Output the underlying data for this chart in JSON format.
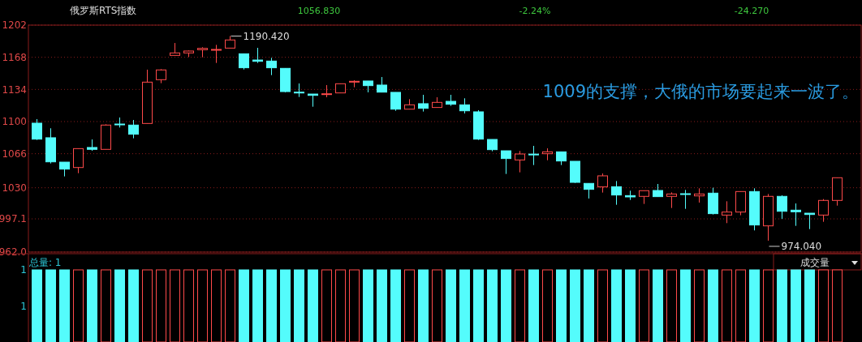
{
  "chart_data": [
    {
      "type": "candlestick",
      "title": "俄罗斯RTS指数",
      "annotations": [
        "1056.830",
        "-2.24%",
        "-24.270",
        "1009的支撑，大俄的市场要起来一波了。",
        "1190.420",
        "974.040"
      ],
      "categories": [
        null,
        null,
        null,
        null,
        null,
        null,
        null,
        null,
        null,
        null,
        null,
        null,
        null,
        null,
        null,
        null,
        null,
        null,
        null,
        null,
        null,
        null,
        null,
        null,
        null,
        null,
        null,
        null,
        null,
        null,
        null,
        null,
        null,
        null,
        null,
        null,
        null,
        null,
        null,
        null,
        null,
        null,
        null,
        null,
        null,
        null,
        null,
        null,
        null,
        null,
        null,
        null,
        null,
        null,
        null,
        null,
        null,
        null,
        null
      ],
      "ohlc": [
        [
          1098.3,
          1102.6,
          1080.6,
          1081.4
        ],
        [
          1082.9,
          1092.9,
          1055.7,
          1057.4
        ],
        [
          1057.1,
          1057.1,
          1042.0,
          1049.7
        ],
        [
          1051.4,
          1071.4,
          1045.4,
          1071.4
        ],
        [
          1072.6,
          1081.1,
          1069.1,
          1070.6
        ],
        [
          1070.6,
          1097.1,
          1070.6,
          1096.3
        ],
        [
          1097.4,
          1104.3,
          1093.7,
          1096.8
        ],
        [
          1096.3,
          1101.7,
          1082.3,
          1086.6
        ],
        [
          1098.0,
          1154.9,
          1098.0,
          1141.7
        ],
        [
          1144.3,
          1155.4,
          1140.6,
          1154.6
        ],
        [
          1170.0,
          1183.1,
          1170.0,
          1172.6
        ],
        [
          1172.6,
          1175.1,
          1168.3,
          1174.6
        ],
        [
          1176.0,
          1178.6,
          1168.0,
          1177.4
        ],
        [
          1176.0,
          1181.1,
          1162.0,
          1176.3
        ],
        [
          1177.7,
          1190.42,
          1177.7,
          1186.3
        ],
        [
          1171.7,
          1171.7,
          1155.1,
          1156.9
        ],
        [
          1165.1,
          1178.0,
          1162.0,
          1163.7
        ],
        [
          1164.0,
          1167.4,
          1149.1,
          1156.9
        ],
        [
          1156.3,
          1156.3,
          1130.9,
          1131.7
        ],
        [
          1131.1,
          1140.3,
          1126.0,
          1130.6
        ],
        [
          1129.1,
          1129.1,
          1115.7,
          1127.7
        ],
        [
          1129.1,
          1138.6,
          1125.7,
          1129.4
        ],
        [
          1130.3,
          1140.3,
          1130.3,
          1140.0
        ],
        [
          1141.7,
          1143.7,
          1136.3,
          1142.6
        ],
        [
          1142.9,
          1142.9,
          1130.9,
          1138.0
        ],
        [
          1138.6,
          1147.1,
          1131.1,
          1131.1
        ],
        [
          1130.9,
          1130.9,
          1111.4,
          1113.1
        ],
        [
          1113.1,
          1123.7,
          1113.1,
          1117.7
        ],
        [
          1118.9,
          1128.3,
          1110.6,
          1114.0
        ],
        [
          1114.9,
          1125.7,
          1114.9,
          1120.3
        ],
        [
          1121.4,
          1128.3,
          1116.6,
          1118.3
        ],
        [
          1117.7,
          1124.6,
          1108.6,
          1111.4
        ],
        [
          1110.3,
          1112.0,
          1080.6,
          1081.4
        ],
        [
          1081.1,
          1081.1,
          1068.6,
          1070.3
        ],
        [
          1069.1,
          1069.1,
          1044.6,
          1060.9
        ],
        [
          1059.4,
          1068.9,
          1046.3,
          1065.7
        ],
        [
          1065.6,
          1074.3,
          1054.0,
          1065.4
        ],
        [
          1066.0,
          1071.7,
          1059.1,
          1068.0
        ],
        [
          1068.0,
          1068.0,
          1054.0,
          1058.3
        ],
        [
          1058.0,
          1058.0,
          1035.1,
          1035.7
        ],
        [
          1034.6,
          1034.6,
          1018.6,
          1028.3
        ],
        [
          1030.9,
          1045.1,
          1024.9,
          1042.6
        ],
        [
          1031.1,
          1037.1,
          1012.0,
          1022.3
        ],
        [
          1021.7,
          1026.9,
          1017.1,
          1020.3
        ],
        [
          1020.9,
          1026.9,
          1012.9,
          1026.9
        ],
        [
          1027.1,
          1034.0,
          1020.6,
          1020.6
        ],
        [
          1020.9,
          1025.1,
          1008.6,
          1023.4
        ],
        [
          1023.7,
          1027.7,
          1007.7,
          1023.4
        ],
        [
          1021.4,
          1029.4,
          1014.3,
          1023.4
        ],
        [
          1024.3,
          1030.0,
          1001.7,
          1002.6
        ],
        [
          1001.1,
          1015.7,
          992.6,
          1004.3
        ],
        [
          1004.3,
          1026.0,
          1000.9,
          1026.0
        ],
        [
          1026.0,
          1029.4,
          984.9,
          990.6
        ],
        [
          989.7,
          1023.4,
          974.04,
          1020.9
        ],
        [
          1020.9,
          1022.0,
          997.1,
          1005.1
        ],
        [
          1006.3,
          1013.4,
          989.7,
          1004.6
        ],
        [
          1003.1,
          1003.1,
          986.3,
          1001.7
        ],
        [
          1001.1,
          1018.0,
          994.0,
          1016.6
        ],
        [
          1016.6,
          1040.6,
          1011.1,
          1040.6
        ]
      ],
      "colors": [
        "#54fcfc",
        "#54fcfc",
        "#54fcfc",
        "#ff4a4a",
        "#54fcfc",
        "#ff4a4a",
        "#54fcfc",
        "#54fcfc",
        "#ff4a4a",
        "#ff4a4a",
        "#ff4a4a",
        "#ff4a4a",
        "#ff4a4a",
        "#ff4a4a",
        "#ff4a4a",
        "#54fcfc",
        "#54fcfc",
        "#54fcfc",
        "#54fcfc",
        "#54fcfc",
        "#54fcfc",
        "#ff4a4a",
        "#ff4a4a",
        "#ff4a4a",
        "#54fcfc",
        "#54fcfc",
        "#54fcfc",
        "#ff4a4a",
        "#54fcfc",
        "#ff4a4a",
        "#54fcfc",
        "#54fcfc",
        "#54fcfc",
        "#54fcfc",
        "#54fcfc",
        "#ff4a4a",
        "#54fcfc",
        "#ff4a4a",
        "#54fcfc",
        "#54fcfc",
        "#54fcfc",
        "#ff4a4a",
        "#54fcfc",
        "#54fcfc",
        "#ff4a4a",
        "#54fcfc",
        "#ff4a4a",
        "#54fcfc",
        "#ff4a4a",
        "#54fcfc",
        "#ff4a4a",
        "#ff4a4a",
        "#54fcfc",
        "#ff4a4a",
        "#54fcfc",
        "#54fcfc",
        "#54fcfc",
        "#ff4a4a",
        "#ff4a4a"
      ],
      "ylim": [
        962,
        1202
      ],
      "yticks": [
        {
          "value": 962,
          "label": "962.0"
        },
        997.1,
        1030,
        1066,
        1100,
        1134,
        1168,
        1202
      ],
      "grid": "y",
      "tick_labels": "y"
    },
    {
      "type": "bar",
      "title": "成交量",
      "annotations": [
        "总量: 1"
      ],
      "categories": [
        null,
        null,
        null,
        null,
        null,
        null,
        null,
        null,
        null,
        null,
        null,
        null,
        null,
        null,
        null,
        null,
        null,
        null,
        null,
        null,
        null,
        null,
        null,
        null,
        null,
        null,
        null,
        null,
        null,
        null,
        null,
        null,
        null,
        null,
        null,
        null,
        null,
        null,
        null,
        null,
        null,
        null,
        null,
        null,
        null,
        null,
        null,
        null,
        null,
        null,
        null,
        null,
        null,
        null,
        null,
        null,
        null,
        null,
        null
      ],
      "values": [
        1,
        1,
        1,
        1,
        1,
        1,
        1,
        1,
        1,
        1,
        1,
        1,
        1,
        1,
        1,
        1,
        1,
        1,
        1,
        1,
        1,
        1,
        1,
        1,
        1,
        1,
        1,
        1,
        1,
        1,
        1,
        1,
        1,
        1,
        1,
        1,
        1,
        1,
        1,
        1,
        1,
        1,
        1,
        1,
        1,
        1,
        1,
        1,
        1,
        1,
        1,
        1,
        1,
        1,
        1,
        1,
        1,
        1,
        1
      ],
      "colors": [
        "#54fcfc",
        "#54fcfc",
        "#54fcfc",
        "#ff4a4a",
        "#54fcfc",
        "#ff4a4a",
        "#54fcfc",
        "#54fcfc",
        "#ff4a4a",
        "#ff4a4a",
        "#ff4a4a",
        "#ff4a4a",
        "#ff4a4a",
        "#ff4a4a",
        "#ff4a4a",
        "#54fcfc",
        "#54fcfc",
        "#54fcfc",
        "#54fcfc",
        "#54fcfc",
        "#54fcfc",
        "#ff4a4a",
        "#ff4a4a",
        "#ff4a4a",
        "#54fcfc",
        "#54fcfc",
        "#54fcfc",
        "#ff4a4a",
        "#54fcfc",
        "#ff4a4a",
        "#54fcfc",
        "#54fcfc",
        "#54fcfc",
        "#54fcfc",
        "#54fcfc",
        "#ff4a4a",
        "#54fcfc",
        "#ff4a4a",
        "#54fcfc",
        "#54fcfc",
        "#54fcfc",
        "#ff4a4a",
        "#54fcfc",
        "#54fcfc",
        "#ff4a4a",
        "#54fcfc",
        "#ff4a4a",
        "#54fcfc",
        "#ff4a4a",
        "#54fcfc",
        "#ff4a4a",
        "#ff4a4a",
        "#54fcfc",
        "#ff4a4a",
        "#54fcfc",
        "#54fcfc",
        "#54fcfc",
        "#ff4a4a",
        "#ff4a4a"
      ],
      "ylim": [
        0,
        1
      ],
      "yticks": [
        {
          "value": 0.5,
          "label": "1"
        },
        1
      ],
      "tick_labels": "y"
    }
  ]
}
